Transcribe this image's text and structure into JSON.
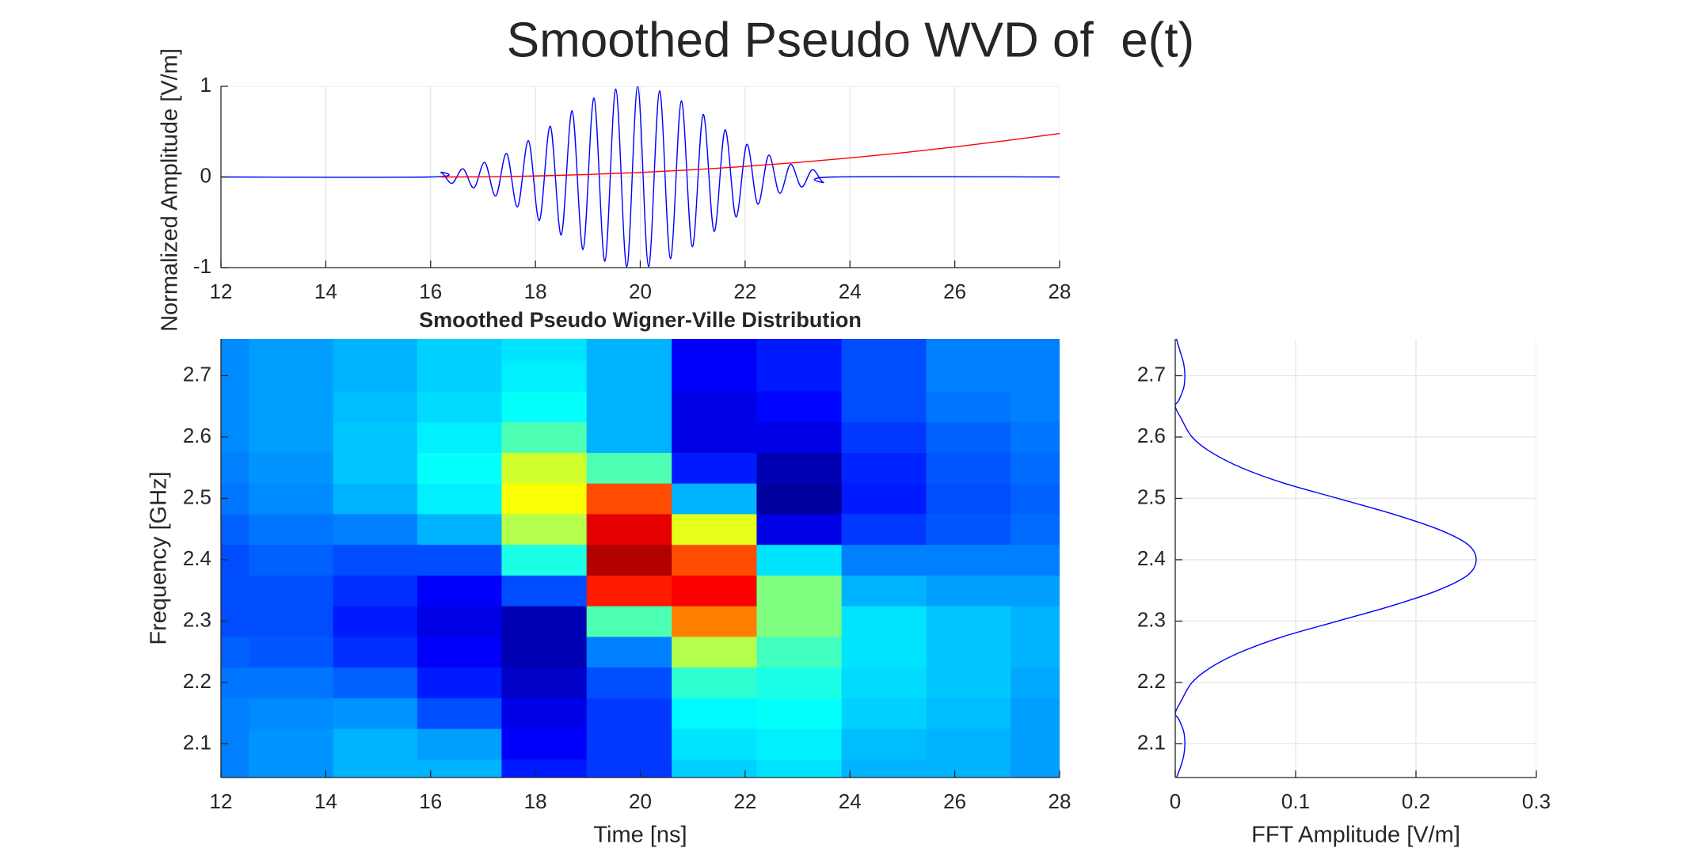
{
  "title": "Smoothed Pseudo WVD of  e(t)",
  "chart_data": [
    {
      "type": "line",
      "ylabel": "Normalized Amplitude [V/m]",
      "xlim": [
        12,
        28
      ],
      "xticks": [
        12,
        14,
        16,
        18,
        20,
        22,
        24,
        26,
        28
      ],
      "ylim": [
        -1,
        1
      ],
      "yticks": [
        -1,
        0,
        1
      ],
      "grid": true,
      "series": [
        {
          "color": "#0000ff",
          "x": [
            12,
            16.0,
            16.2,
            16.408,
            16.617,
            16.825,
            17.033,
            17.242,
            17.45,
            17.658,
            17.867,
            18.075,
            18.283,
            18.492,
            18.7,
            18.908,
            19.117,
            19.325,
            19.533,
            19.742,
            19.95,
            20.158,
            20.367,
            20.575,
            20.783,
            20.992,
            21.2,
            21.408,
            21.617,
            21.825,
            22.033,
            22.242,
            22.45,
            22.658,
            22.867,
            23.075,
            23.283,
            23.492,
            23.7,
            28
          ],
          "values": [
            0,
            0,
            0.05,
            -0.07,
            0.09,
            -0.12,
            0.16,
            -0.21,
            0.26,
            -0.33,
            0.4,
            -0.48,
            0.56,
            -0.64,
            0.73,
            -0.8,
            0.87,
            -0.93,
            0.97,
            -0.99,
            1.0,
            -0.99,
            0.95,
            -0.9,
            0.84,
            -0.77,
            0.69,
            -0.6,
            0.52,
            -0.44,
            0.36,
            -0.3,
            0.24,
            -0.18,
            0.14,
            -0.11,
            0.08,
            -0.06,
            0,
            0
          ]
        },
        {
          "color": "#ff0000",
          "x": [
            16.2,
            17,
            18,
            19,
            20,
            21,
            22,
            23,
            24,
            25,
            26,
            27,
            28
          ],
          "values": [
            0,
            0.002,
            0.011,
            0.027,
            0.05,
            0.079,
            0.116,
            0.16,
            0.21,
            0.267,
            0.331,
            0.402,
            0.48
          ]
        }
      ]
    },
    {
      "type": "heatmap",
      "title": "Smoothed Pseudo Wigner-Ville Distribution",
      "xlabel": "Time [ns]",
      "ylabel": "Frequency [GHz]",
      "xlim": [
        12,
        28
      ],
      "xticks": [
        12,
        14,
        16,
        18,
        20,
        22,
        24,
        26,
        28
      ],
      "ylim": [
        2.045,
        2.76
      ],
      "yticks": [
        2.1,
        2.2,
        2.3,
        2.4,
        2.5,
        2.6,
        2.7
      ],
      "colormap": "jet",
      "clim": [
        0,
        1
      ],
      "x": [
        11.73,
        13.34,
        14.94,
        16.55,
        18.16,
        19.79,
        21.41,
        23.03,
        24.65,
        26.26,
        27.87
      ],
      "y": [
        2.05,
        2.1,
        2.15,
        2.2,
        2.25,
        2.3,
        2.35,
        2.4,
        2.45,
        2.5,
        2.55,
        2.6,
        2.65,
        2.7,
        2.75
      ],
      "z": [
        [
          0.25,
          0.25,
          0.25,
          0.24,
          0.22,
          0.2,
          0.2,
          0.2,
          0.22,
          0.24,
          0.25,
          0.26,
          0.26,
          0.26,
          0.26
        ],
        [
          0.27,
          0.27,
          0.26,
          0.24,
          0.21,
          0.2,
          0.2,
          0.22,
          0.24,
          0.26,
          0.27,
          0.28,
          0.28,
          0.28,
          0.28
        ],
        [
          0.3,
          0.3,
          0.27,
          0.22,
          0.17,
          0.15,
          0.17,
          0.2,
          0.25,
          0.3,
          0.32,
          0.32,
          0.31,
          0.3,
          0.3
        ],
        [
          0.3,
          0.28,
          0.2,
          0.15,
          0.12,
          0.1,
          0.12,
          0.2,
          0.3,
          0.36,
          0.38,
          0.36,
          0.34,
          0.33,
          0.33
        ],
        [
          0.15,
          0.12,
          0.1,
          0.07,
          0.05,
          0.05,
          0.2,
          0.4,
          0.55,
          0.62,
          0.58,
          0.45,
          0.38,
          0.36,
          0.35
        ],
        [
          0.18,
          0.18,
          0.18,
          0.2,
          0.25,
          0.45,
          0.85,
          0.95,
          0.9,
          0.8,
          0.45,
          0.3,
          0.3,
          0.3,
          0.3
        ],
        [
          0.33,
          0.35,
          0.37,
          0.42,
          0.55,
          0.75,
          0.88,
          0.8,
          0.6,
          0.3,
          0.15,
          0.1,
          0.1,
          0.12,
          0.12
        ],
        [
          0.35,
          0.36,
          0.38,
          0.4,
          0.44,
          0.5,
          0.5,
          0.35,
          0.1,
          0.03,
          0.05,
          0.1,
          0.13,
          0.15,
          0.15
        ],
        [
          0.3,
          0.31,
          0.33,
          0.34,
          0.35,
          0.35,
          0.3,
          0.25,
          0.18,
          0.15,
          0.16,
          0.18,
          0.2,
          0.2,
          0.2
        ],
        [
          0.3,
          0.3,
          0.31,
          0.32,
          0.32,
          0.32,
          0.28,
          0.25,
          0.21,
          0.2,
          0.21,
          0.22,
          0.24,
          0.25,
          0.25
        ],
        [
          0.28,
          0.28,
          0.28,
          0.29,
          0.3,
          0.3,
          0.28,
          0.25,
          0.23,
          0.22,
          0.23,
          0.24,
          0.25,
          0.25,
          0.25
        ]
      ]
    },
    {
      "type": "line",
      "orientation": "vertical",
      "xlabel": "FFT Amplitude [V/m]",
      "xlim": [
        0,
        0.3
      ],
      "xticks": [
        0,
        0.1,
        0.2,
        0.3
      ],
      "ylim": [
        2.045,
        2.76
      ],
      "yticks": [
        2.1,
        2.2,
        2.3,
        2.4,
        2.5,
        2.6,
        2.7
      ],
      "grid": true,
      "series": [
        {
          "color": "#0000ff",
          "y": [
            2.045,
            2.06,
            2.08,
            2.1,
            2.12,
            2.14,
            2.15,
            2.17,
            2.2,
            2.225,
            2.25,
            2.275,
            2.3,
            2.325,
            2.35,
            2.375,
            2.4,
            2.425,
            2.45,
            2.475,
            2.5,
            2.525,
            2.55,
            2.575,
            2.6,
            2.63,
            2.65,
            2.66,
            2.68,
            2.7,
            2.72,
            2.74,
            2.76
          ],
          "values": [
            0.001,
            0.004,
            0.007,
            0.008,
            0.007,
            0.003,
            0,
            0.005,
            0.014,
            0.03,
            0.055,
            0.09,
            0.135,
            0.18,
            0.218,
            0.243,
            0.25,
            0.243,
            0.218,
            0.18,
            0.135,
            0.09,
            0.055,
            0.03,
            0.014,
            0.005,
            0,
            0.003,
            0.007,
            0.008,
            0.007,
            0.004,
            0.001
          ]
        }
      ]
    }
  ]
}
